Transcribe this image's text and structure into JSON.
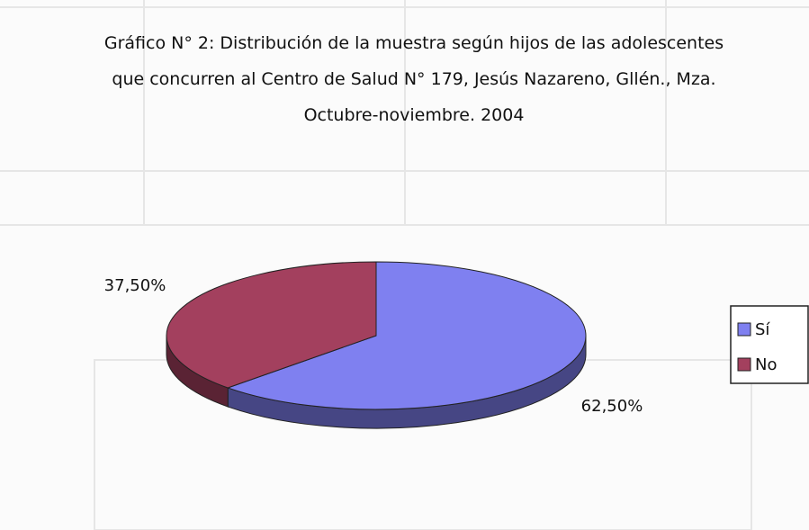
{
  "chart_data": {
    "type": "pie3d",
    "title": "Gráfico N° 2: Distribución de la muestra según hijos de las adolescentes que concurren al Centro de Salud N° 179, Jesús Nazareno, Gllén., Mza. Octubre-noviembre. 2004",
    "categories": [
      "Sí",
      "No"
    ],
    "values": [
      62.5,
      37.5
    ],
    "value_labels": [
      "62,50%",
      "37,50%"
    ],
    "colors": [
      "#7f80f0",
      "#a3405e"
    ],
    "legend": "right"
  }
}
